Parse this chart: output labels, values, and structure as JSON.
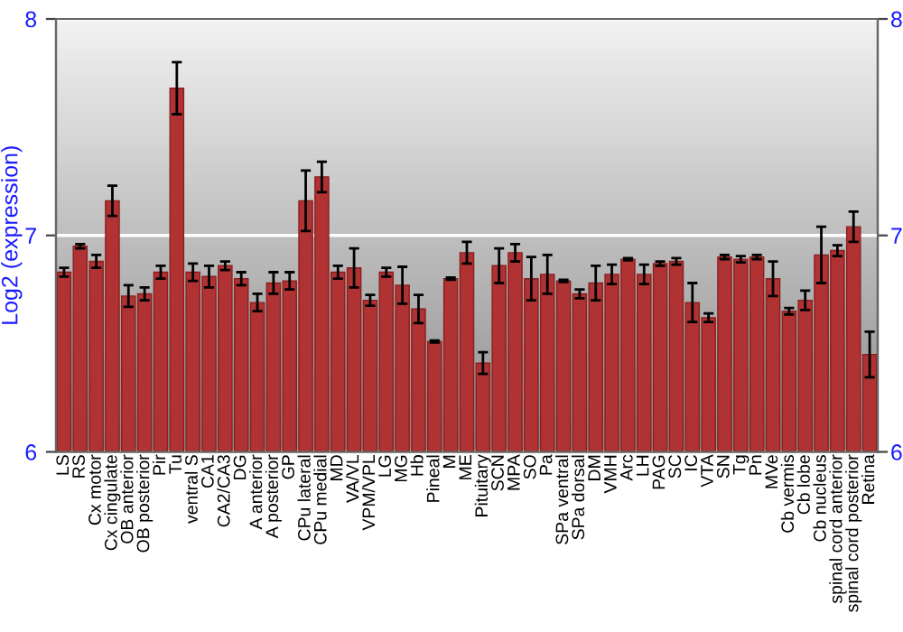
{
  "chart_data": {
    "type": "bar",
    "ylabel": "Log2 (expression)",
    "categories": [
      "LS",
      "RS",
      "Cx motor",
      "Cx cingulate",
      "OB anterior",
      "OB posterior",
      "Pir",
      "Tu",
      "ventral S",
      "CA1",
      "CA2/CA3",
      "DG",
      "A anterior",
      "A posterior",
      "GP",
      "CPu lateral",
      "CPu medial",
      "MD",
      "VA/VL",
      "VPM/VPL",
      "LG",
      "MG",
      "Hb",
      "Pineal",
      "M",
      "ME",
      "Pituitary",
      "SCN",
      "MPA",
      "SO",
      "Pa",
      "SPa ventral",
      "SPa dorsal",
      "DM",
      "VMH",
      "Arc",
      "LH",
      "PAG",
      "SC",
      "IC",
      "VTA",
      "SN",
      "Tg",
      "Pn",
      "MVe",
      "Cb vermis",
      "Cb lobe",
      "Cb nucleus",
      "spinal cord anterior",
      "spinal cord posterior",
      "Retina"
    ],
    "values": [
      6.83,
      6.95,
      6.88,
      7.16,
      6.72,
      6.73,
      6.83,
      7.68,
      6.83,
      6.81,
      6.86,
      6.8,
      6.69,
      6.78,
      6.79,
      7.16,
      7.27,
      6.83,
      6.85,
      6.7,
      6.83,
      6.77,
      6.66,
      6.51,
      6.8,
      6.92,
      6.41,
      6.86,
      6.92,
      6.8,
      6.82,
      6.79,
      6.73,
      6.78,
      6.82,
      6.89,
      6.82,
      6.87,
      6.88,
      6.69,
      6.62,
      6.9,
      6.89,
      6.9,
      6.8,
      6.65,
      6.7,
      6.91,
      6.93,
      7.04,
      6.45
    ],
    "errors": [
      0.02,
      0.01,
      0.03,
      0.07,
      0.05,
      0.03,
      0.03,
      0.12,
      0.04,
      0.05,
      0.02,
      0.03,
      0.04,
      0.05,
      0.04,
      0.14,
      0.07,
      0.03,
      0.09,
      0.025,
      0.02,
      0.085,
      0.065,
      0.005,
      0.005,
      0.05,
      0.05,
      0.08,
      0.04,
      0.1,
      0.09,
      0.005,
      0.02,
      0.08,
      0.045,
      0.005,
      0.045,
      0.01,
      0.015,
      0.09,
      0.02,
      0.01,
      0.015,
      0.01,
      0.08,
      0.015,
      0.045,
      0.13,
      0.025,
      0.07,
      0.105
    ],
    "color": "#b03232",
    "ylim": [
      6,
      8
    ],
    "yticks": [
      6,
      7,
      8
    ],
    "y2lim": [
      6,
      8
    ],
    "y2ticks": [
      6,
      7,
      8
    ],
    "grid": "y",
    "legend": false
  }
}
